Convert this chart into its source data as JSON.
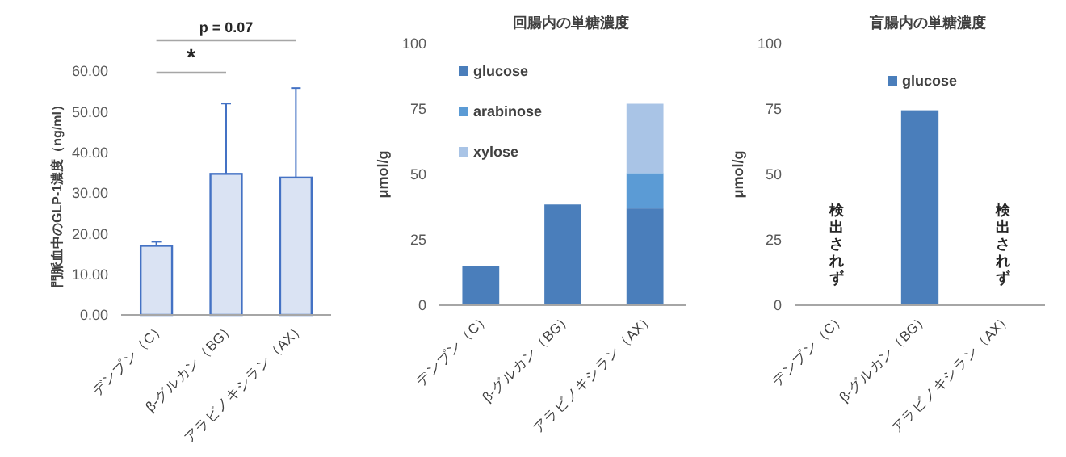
{
  "chart_data": [
    {
      "type": "bar",
      "ylabel": "門脈血中のGLP-1濃度（ng/ml）",
      "categories": [
        "デンプン（C）",
        "β-グルカン（BG）",
        "アラビノキシラン（AX）"
      ],
      "series": [
        {
          "color": "#dae3f3",
          "values": [
            17.0,
            34.7,
            33.8
          ],
          "errors": [
            [
              17.0,
              18.0
            ],
            [
              34.7,
              52.0
            ],
            [
              33.8,
              55.8
            ]
          ]
        }
      ],
      "ylim": [
        0,
        60
      ],
      "yticks": [
        {
          "value": 0,
          "label": "0.00"
        },
        {
          "value": 10,
          "label": "10.00"
        },
        {
          "value": 20,
          "label": "20.00"
        },
        {
          "value": 30,
          "label": "30.00"
        },
        {
          "value": 40,
          "label": "40.00"
        },
        {
          "value": 50,
          "label": "50.00"
        },
        {
          "value": 60,
          "label": "60.00"
        }
      ],
      "annotations": [
        "*",
        "p = 0.07"
      ],
      "legend": false,
      "grid": false
    },
    {
      "type": "bar",
      "title": "回腸内の単糖濃度",
      "ylabel": "μmol/g",
      "categories": [
        "デンプン（C）",
        "β-グルカン（BG）",
        "アラビノキシラン（AX）"
      ],
      "stacked": true,
      "series": [
        {
          "name": "glucose",
          "color": "#4a7ebb",
          "values": [
            15,
            38.5,
            37
          ]
        },
        {
          "name": "arabinose",
          "color": "#5b9bd5",
          "values": [
            0,
            0,
            13.5
          ]
        },
        {
          "name": "xylose",
          "color": "#a9c4e6",
          "values": [
            0,
            0,
            26.5
          ]
        }
      ],
      "ylim": [
        0,
        100
      ],
      "yticks": [
        0,
        25,
        50,
        75,
        100
      ],
      "legend": "top left",
      "grid": false
    },
    {
      "type": "bar",
      "title": "盲腸内の単糖濃度",
      "ylabel": "μmol/g",
      "categories": [
        "デンプン（C）",
        "β-グルカン（BG）",
        "アラビノキシラン（AX）"
      ],
      "series": [
        {
          "name": "glucose",
          "color": "#4a7ebb",
          "values": [
            null,
            74.5,
            null
          ]
        }
      ],
      "ylim": [
        0,
        100
      ],
      "yticks": [
        0,
        25,
        50,
        75,
        100
      ],
      "annotations": [
        "検出されず",
        "検出されず"
      ],
      "legend": "top",
      "grid": false
    }
  ]
}
